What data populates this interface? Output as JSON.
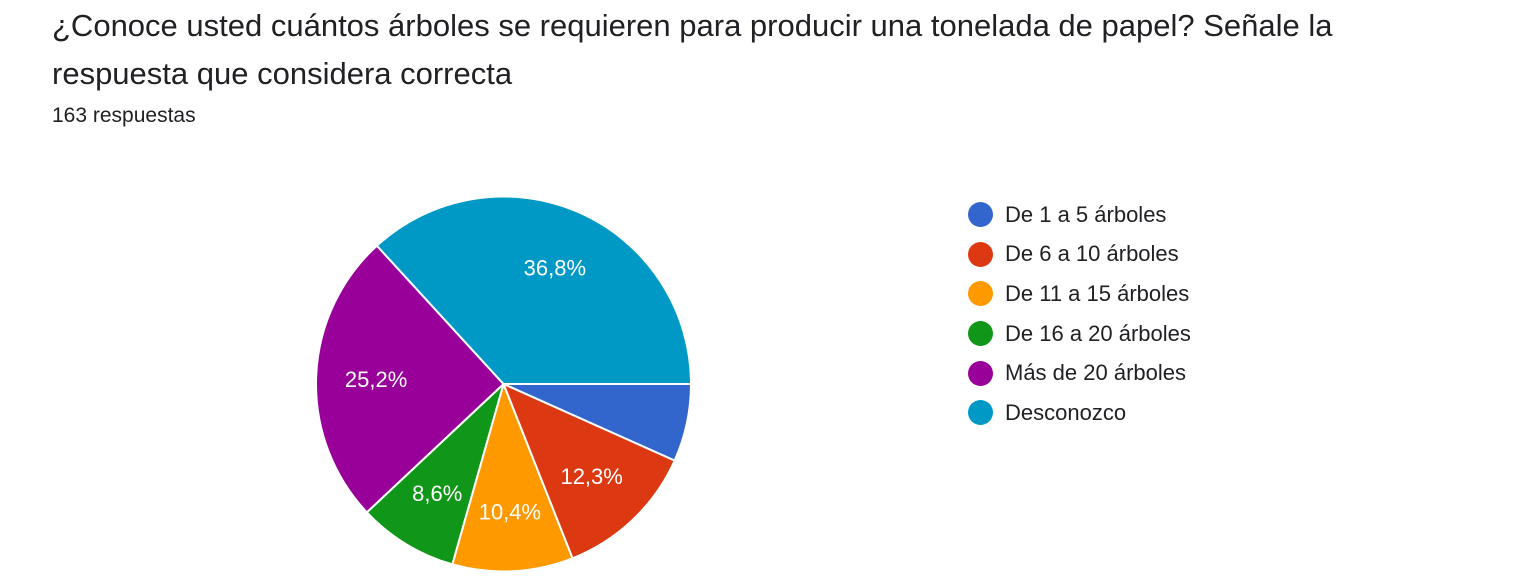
{
  "question": {
    "title": "¿Conoce usted cuántos árboles se requieren para producir una tonelada de papel? Señale la respuesta que considera correcta",
    "responses": "163 respuestas"
  },
  "chart_data": {
    "type": "pie",
    "title": "",
    "legend_position": "right",
    "start_angle": "3 o'clock, clockwise",
    "slices": [
      {
        "label": "De 1 a 5 árboles",
        "value": 6.7,
        "display": "",
        "color": "#3366cc"
      },
      {
        "label": "De 6 a 10 árboles",
        "value": 12.3,
        "display": "12,3%",
        "color": "#dc3912"
      },
      {
        "label": "De 11 a 15 árboles",
        "value": 10.4,
        "display": "10,4%",
        "color": "#ff9900"
      },
      {
        "label": "De 16 a 20 árboles",
        "value": 8.6,
        "display": "8,6%",
        "color": "#109618"
      },
      {
        "label": "Más de 20 árboles",
        "value": 25.2,
        "display": "25,2%",
        "color": "#990099"
      },
      {
        "label": "Desconozco",
        "value": 36.8,
        "display": "36,8%",
        "color": "#0099c6"
      }
    ]
  }
}
